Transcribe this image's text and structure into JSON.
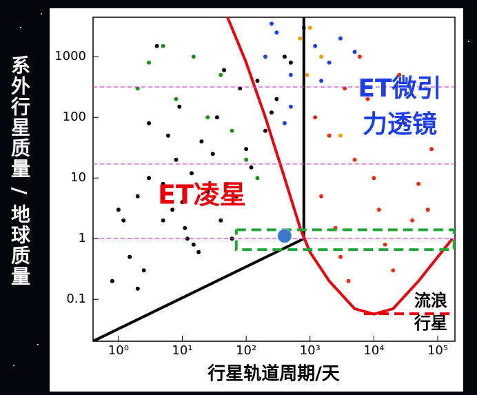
{
  "chart_data": {
    "type": "scatter",
    "x_label": "行星轨道周期/天",
    "y_label": "系外行星质量 / 地球质量",
    "log_x": true,
    "log_y": true,
    "xlim": [
      0.4,
      186000
    ],
    "ylim": [
      0.0204,
      4470
    ],
    "xticks": [
      {
        "value": 1,
        "label": "10⁰"
      },
      {
        "value": 10,
        "label": "10¹"
      },
      {
        "value": 100,
        "label": "10²"
      },
      {
        "value": 1000,
        "label": "10³"
      },
      {
        "value": 10000,
        "label": "10⁴"
      },
      {
        "value": 100000,
        "label": "10⁵"
      }
    ],
    "yticks": [
      0.1,
      1,
      10,
      100,
      1000
    ],
    "annotations": [
      "ET凌星",
      "ET微引",
      "力透镜",
      "流浪",
      "行星"
    ],
    "series": [
      {
        "color": "#000000",
        "x": [
          1,
          2,
          3,
          5,
          8,
          12,
          20,
          35,
          50,
          80,
          120,
          200,
          300,
          500,
          1.5,
          2.5,
          4,
          6,
          10,
          15,
          25,
          40,
          60,
          100,
          150,
          250,
          400,
          0.8,
          1.2,
          3,
          7,
          18,
          30,
          70,
          9,
          5,
          14,
          45,
          2,
          11
        ],
        "values": [
          3,
          5,
          10,
          2,
          20,
          1,
          40,
          100,
          8,
          300,
          15,
          60,
          200,
          800,
          0.5,
          0.3,
          1500,
          50,
          4,
          0.8,
          6,
          2,
          1,
          30,
          400,
          120,
          1000,
          0.2,
          2,
          80,
          3,
          0.6,
          25,
          5,
          150,
          8,
          12,
          600,
          0.15,
          1.5
        ]
      },
      {
        "color": "#1a8f1a",
        "x": [
          2,
          3,
          5,
          8,
          15,
          25,
          40,
          60,
          100,
          150
        ],
        "values": [
          300,
          800,
          1500,
          200,
          1000,
          100,
          500,
          60,
          20,
          10
        ]
      },
      {
        "color": "#2040e0",
        "x": [
          200,
          300,
          500,
          800,
          1200,
          2000,
          3000,
          500,
          400,
          1500,
          5000,
          250
        ],
        "values": [
          1000,
          2500,
          500,
          3000,
          1500,
          800,
          2000,
          150,
          80,
          400,
          1200,
          3500
        ]
      },
      {
        "color": "#f02a10",
        "x": [
          1500,
          2000,
          3000,
          5000,
          8000,
          12000,
          20000,
          30000,
          50000,
          80000,
          1200,
          4000,
          6000,
          15000,
          25000,
          40000,
          2500,
          10000,
          3500,
          70000
        ],
        "values": [
          5,
          50,
          0.5,
          20,
          200,
          3,
          0.3,
          80,
          8,
          30,
          100,
          0.2,
          1000,
          0.8,
          500,
          2,
          1.5,
          10,
          300,
          3
        ]
      },
      {
        "color": "#f5a000",
        "x": [
          1000,
          1500,
          3000,
          700,
          900
        ],
        "values": [
          3000,
          1000,
          50,
          2000,
          500
        ]
      }
    ],
    "lines": [
      {
        "color": "#000000",
        "x": [
          0.4,
          800,
          800
        ],
        "values": [
          0.0204,
          1,
          4470
        ]
      },
      {
        "color": "#e8000b",
        "x": [
          51,
          100,
          200,
          400,
          700,
          1000,
          2000,
          5000,
          10000,
          20000,
          50000,
          100000,
          170000
        ],
        "values": [
          4467,
          800,
          100,
          10,
          1.5,
          0.6,
          0.2,
          0.07,
          0.057,
          0.07,
          0.2,
          0.5,
          1
        ]
      },
      {
        "color": "#d040d0",
        "dashed": true,
        "x": [
          0.4,
          186000
        ],
        "values": [
          317,
          317
        ]
      },
      {
        "color": "#d040d0",
        "dashed": true,
        "x": [
          0.4,
          186000
        ],
        "values": [
          17,
          17
        ]
      },
      {
        "color": "#d040d0",
        "dashed": true,
        "x": [
          0.4,
          186000
        ],
        "values": [
          1,
          1
        ]
      },
      {
        "color": "#22a83a",
        "dashed": true,
        "x": [
          70,
          180000,
          180000,
          70,
          70
        ],
        "values": [
          1.4,
          1.4,
          0.66,
          0.66,
          1.4
        ]
      },
      {
        "color": "#e8000b",
        "dashed": true,
        "x": [
          7000,
          180000
        ],
        "values": [
          0.058,
          0.058
        ]
      }
    ]
  }
}
